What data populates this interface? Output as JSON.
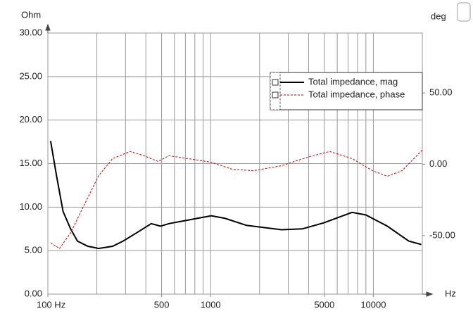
{
  "chart_data": {
    "type": "line",
    "y_label": "Ohm",
    "y2_label": "deg",
    "x_label": "Hz",
    "xscale": "log",
    "xlim": [
      100,
      20000
    ],
    "xticks": [
      {
        "value": 100,
        "label": "100 Hz"
      },
      500,
      1000,
      5000,
      10000
    ],
    "xgrid": [
      100,
      200,
      300,
      400,
      500,
      600,
      700,
      800,
      900,
      1000,
      2000,
      3000,
      4000,
      5000,
      6000,
      7000,
      8000,
      9000,
      10000,
      20000
    ],
    "ylim": [
      0,
      30
    ],
    "yticks": [
      {
        "value": 0,
        "label": "0.00"
      },
      {
        "value": 5,
        "label": "5.00"
      },
      {
        "value": 10,
        "label": "10.00"
      },
      {
        "value": 15,
        "label": "15.00"
      },
      {
        "value": 20,
        "label": "20.00"
      },
      {
        "value": 25,
        "label": "25.00"
      },
      {
        "value": 30,
        "label": "30.00"
      }
    ],
    "y2lim": [
      -91,
      92
    ],
    "y2ticks": [
      {
        "value": -50,
        "label": "-50.00"
      },
      {
        "value": 0,
        "label": "0.00"
      },
      {
        "value": 50,
        "label": "50.00"
      }
    ],
    "grid": true,
    "series": [
      {
        "name": "Total impedance, mag",
        "color": "#000000",
        "dash": false,
        "x": [
          104,
          113,
          124,
          138,
          152,
          176,
          205,
          250,
          290,
          355,
          432,
          493,
          555,
          676,
          826,
          1010,
          1230,
          1660,
          2730,
          3660,
          4980,
          7400,
          9000,
          12200,
          16500,
          19700
        ],
        "values": [
          17.6,
          13.6,
          9.5,
          7.5,
          6.1,
          5.5,
          5.25,
          5.5,
          6.1,
          7.1,
          8.1,
          7.8,
          8.1,
          8.4,
          8.7,
          9.0,
          8.7,
          7.9,
          7.4,
          7.5,
          8.2,
          9.4,
          9.1,
          7.8,
          6.1,
          5.7
        ]
      },
      {
        "name": "Total impedance, phase",
        "color": "#cc0000",
        "dash": true,
        "axis": "y2",
        "x": [
          104,
          118,
          138,
          168,
          205,
          250,
          320,
          390,
          475,
          555,
          826,
          1010,
          1360,
          1840,
          2730,
          4050,
          5400,
          7400,
          9900,
          12200,
          15000,
          20000
        ],
        "values": [
          -55,
          -59,
          -48,
          -28,
          -8,
          4,
          9,
          6,
          2,
          6,
          3,
          1.5,
          -3.5,
          -4.5,
          -1,
          5.4,
          9,
          4,
          -4.5,
          -8.4,
          -4.5,
          10
        ]
      }
    ]
  }
}
